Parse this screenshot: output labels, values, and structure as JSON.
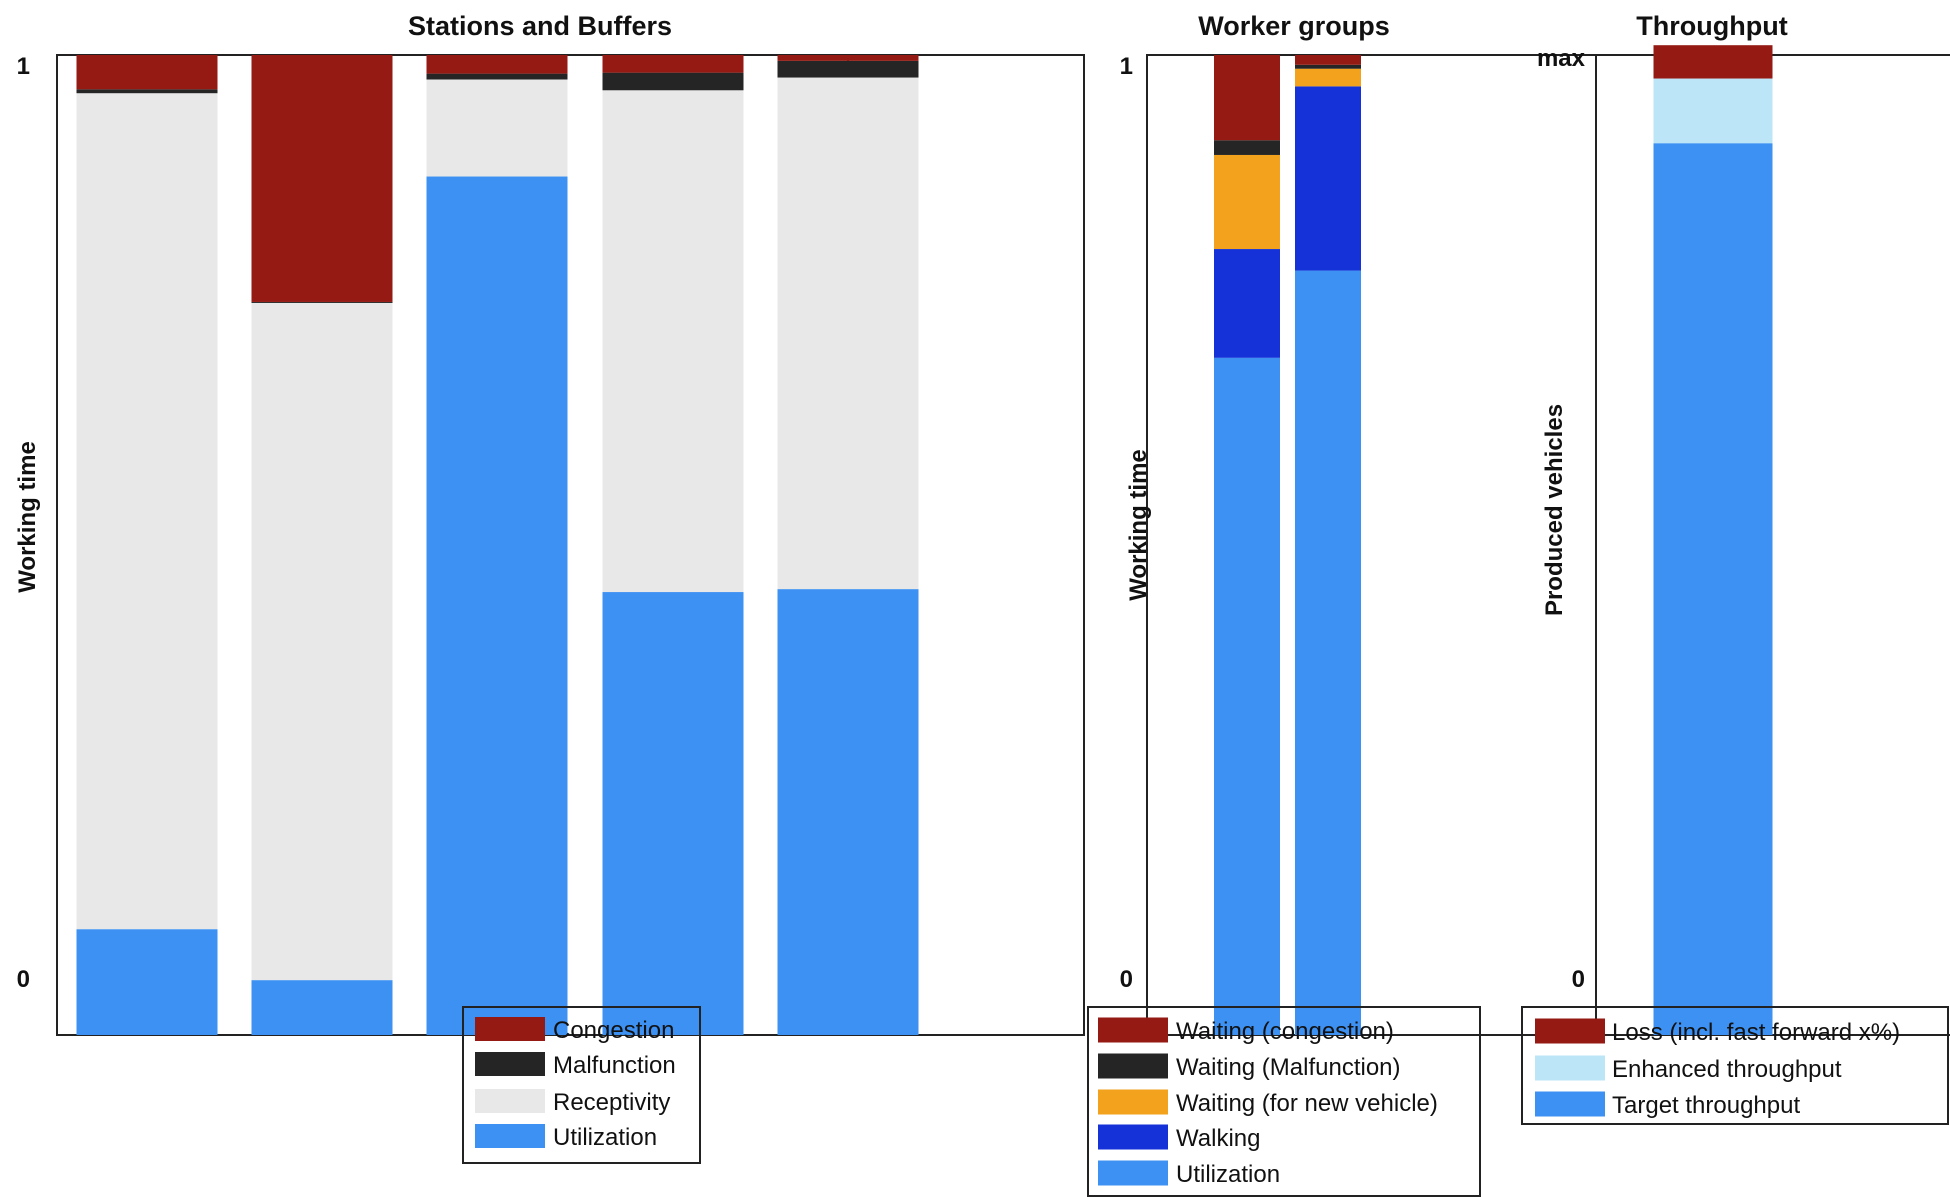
{
  "chart_data": [
    {
      "type": "bar",
      "stacked": true,
      "title": "Stations and Buffers",
      "xlabel": "",
      "ylabel": "Working time",
      "ylim": [
        0,
        1
      ],
      "y_tick_labels": [
        "0",
        "1"
      ],
      "categories": [
        "",
        "",
        "",
        "",
        ""
      ],
      "series": [
        {
          "name": "Utilization",
          "color": "#3D91F2",
          "values": [
            0.108,
            0.056,
            0.876,
            0.452,
            0.455
          ]
        },
        {
          "name": "Receptivity",
          "color": "#E8E8E8",
          "values": [
            0.853,
            0.691,
            0.099,
            0.512,
            0.522
          ]
        },
        {
          "name": "Malfunction",
          "color": "#252525",
          "values": [
            0.004,
            0.001,
            0.006,
            0.018,
            0.017
          ]
        },
        {
          "name": "Congestion",
          "color": "#941A13",
          "values": [
            0.035,
            0.252,
            0.019,
            0.018,
            0.006
          ]
        }
      ],
      "legend": {
        "position": "bottom",
        "entries": [
          "Congestion",
          "Malfunction",
          "Receptivity",
          "Utilization"
        ]
      },
      "grid": false
    },
    {
      "type": "bar",
      "stacked": true,
      "title": "Worker groups",
      "xlabel": "",
      "ylabel": "Working time",
      "ylim": [
        0,
        1
      ],
      "y_tick_labels": [
        "0",
        "1"
      ],
      "categories": [
        "",
        ""
      ],
      "series": [
        {
          "name": "Utilization",
          "color": "#3D91F2",
          "values": [
            0.691,
            0.78
          ]
        },
        {
          "name": "Walking",
          "color": "#1432D8",
          "values": [
            0.111,
            0.188
          ]
        },
        {
          "name": "Waiting (for new vehicle)",
          "color": "#F2A21C",
          "values": [
            0.096,
            0.018
          ]
        },
        {
          "name": "Waiting (Malfunction)",
          "color": "#252525",
          "values": [
            0.015,
            0.004
          ]
        },
        {
          "name": "Waiting (congestion)",
          "color": "#941A13",
          "values": [
            0.087,
            0.01
          ]
        }
      ],
      "legend": {
        "position": "bottom",
        "entries": [
          "Waiting (congestion)",
          "Waiting (Malfunction)",
          "Waiting (for new vehicle)",
          "Walking",
          "Utilization"
        ]
      },
      "grid": false
    },
    {
      "type": "bar",
      "stacked": true,
      "title": "Throughput",
      "xlabel": "",
      "ylabel": "Produced vehicles",
      "ylim": [
        0,
        1
      ],
      "y_tick_labels": [
        "0",
        "max"
      ],
      "categories": [
        ""
      ],
      "series": [
        {
          "name": "Target throughput",
          "color": "#3D91F2",
          "values": [
            0.91
          ]
        },
        {
          "name": "Enhanced throughput",
          "color": "#BCE6F7",
          "values": [
            0.066
          ]
        },
        {
          "name": "Loss (incl. fast forward x%)",
          "color": "#941A13",
          "values": [
            0.034
          ]
        }
      ],
      "legend": {
        "position": "bottom",
        "entries": [
          "Loss (incl. fast forward x%)",
          "Enhanced throughput",
          "Target throughput"
        ]
      },
      "grid": false
    }
  ]
}
